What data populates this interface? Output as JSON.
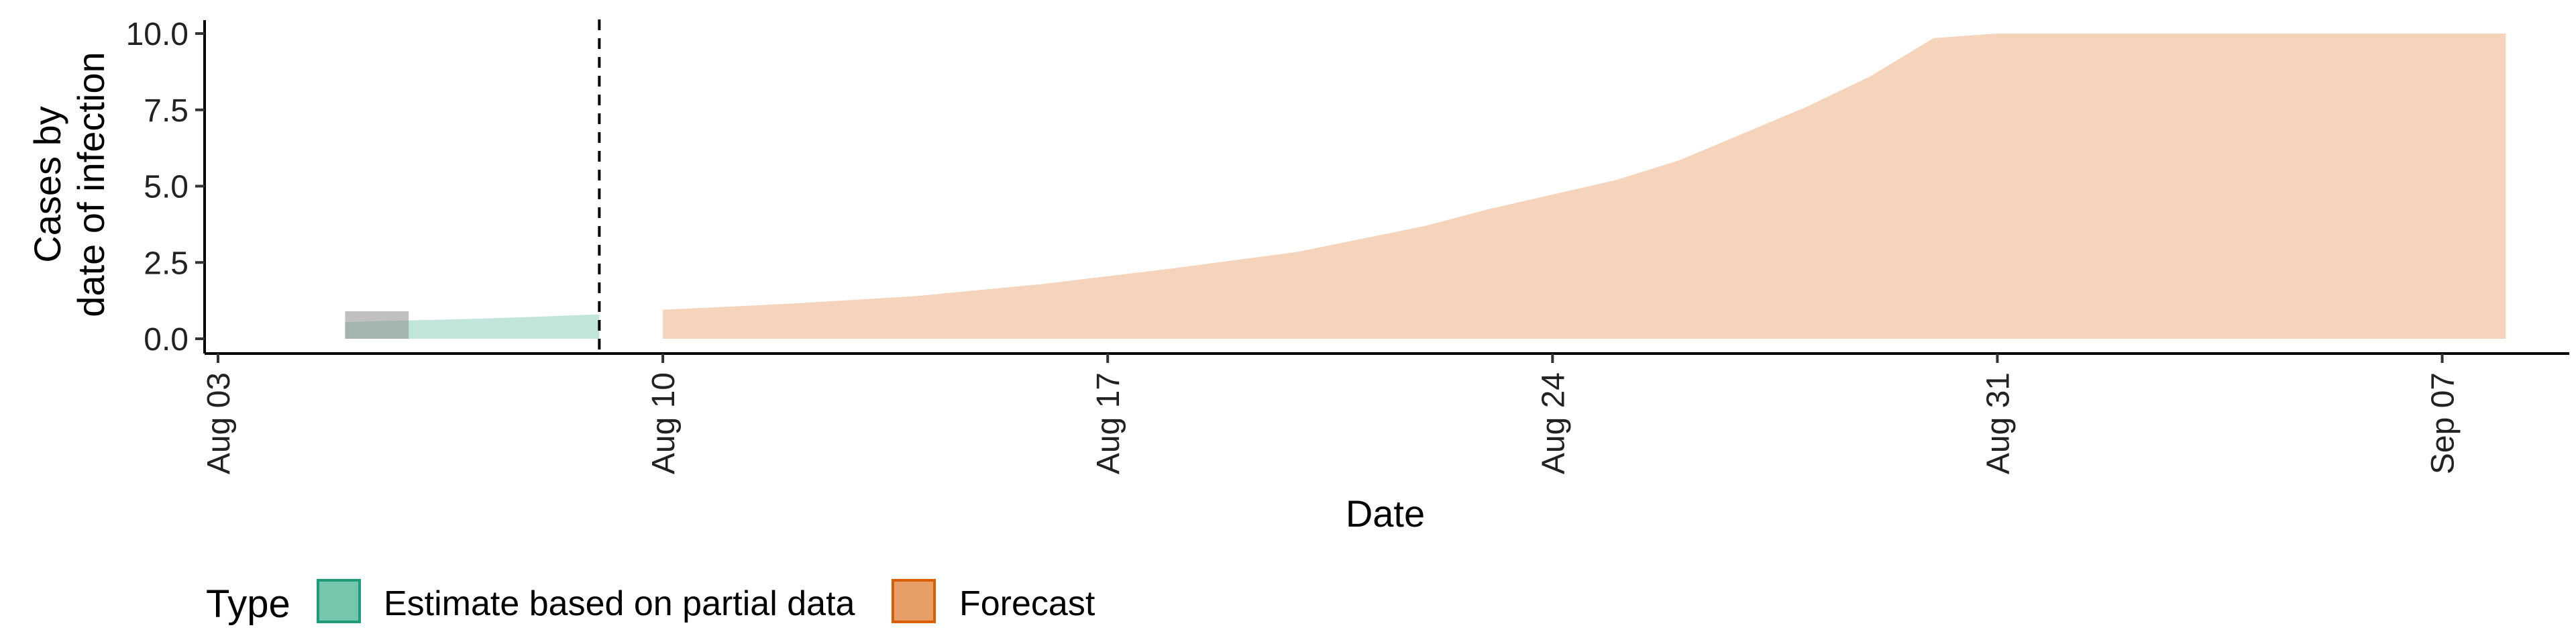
{
  "chart_data": {
    "type": "area",
    "xlabel": "Date",
    "ylabel_lines": [
      "Cases by",
      "date of infection"
    ],
    "xlim": [
      "2020-08-03",
      "2020-09-09"
    ],
    "ylim": [
      0,
      10
    ],
    "x_ticks": [
      {
        "date": "2020-08-03",
        "label": "Aug 03"
      },
      {
        "date": "2020-08-10",
        "label": "Aug 10"
      },
      {
        "date": "2020-08-17",
        "label": "Aug 17"
      },
      {
        "date": "2020-08-24",
        "label": "Aug 24"
      },
      {
        "date": "2020-08-31",
        "label": "Aug 31"
      },
      {
        "date": "2020-09-07",
        "label": "Sep 07"
      }
    ],
    "y_ticks": [
      {
        "value": 0,
        "label": "0.0"
      },
      {
        "value": 2.5,
        "label": "2.5"
      },
      {
        "value": 5,
        "label": "5.0"
      },
      {
        "value": 7.5,
        "label": "7.5"
      },
      {
        "value": 10,
        "label": "10.0"
      }
    ],
    "cutoff_date": "2020-08-09",
    "grey_band": {
      "x": [
        "2020-08-05",
        "2020-08-06"
      ],
      "y": [
        0,
        0.9
      ]
    },
    "series": [
      {
        "name": "Estimate based on partial data",
        "color": "#1b9e77",
        "lower": [
          {
            "x": "2020-08-05",
            "y": 0
          },
          {
            "x": "2020-08-09",
            "y": 0
          }
        ],
        "upper": [
          {
            "x": "2020-08-05",
            "y": 0.55
          },
          {
            "x": "2020-08-06",
            "y": 0.6
          },
          {
            "x": "2020-08-07",
            "y": 0.65
          },
          {
            "x": "2020-08-08",
            "y": 0.72
          },
          {
            "x": "2020-08-09",
            "y": 0.8
          }
        ]
      },
      {
        "name": "Forecast",
        "color": "#d95f02",
        "lower": [
          {
            "x": "2020-08-10",
            "y": 0
          },
          {
            "x": "2020-09-08",
            "y": 0
          }
        ],
        "upper": [
          {
            "x": "2020-08-10",
            "y": 0.95
          },
          {
            "x": "2020-08-12",
            "y": 1.15
          },
          {
            "x": "2020-08-14",
            "y": 1.4
          },
          {
            "x": "2020-08-16",
            "y": 1.8
          },
          {
            "x": "2020-08-18",
            "y": 2.3
          },
          {
            "x": "2020-08-20",
            "y": 2.85
          },
          {
            "x": "2020-08-22",
            "y": 3.7
          },
          {
            "x": "2020-08-23",
            "y": 4.25
          },
          {
            "x": "2020-08-25",
            "y": 5.2
          },
          {
            "x": "2020-08-26",
            "y": 5.85
          },
          {
            "x": "2020-08-28",
            "y": 7.6
          },
          {
            "x": "2020-08-29",
            "y": 8.6
          },
          {
            "x": "2020-08-30",
            "y": 9.85
          },
          {
            "x": "2020-08-31",
            "y": 10.0
          },
          {
            "x": "2020-09-08",
            "y": 10.0
          }
        ]
      }
    ],
    "legend": {
      "title": "Type",
      "position": "bottom-left",
      "items": [
        {
          "label": "Estimate based on partial data",
          "color": "#1b9e77"
        },
        {
          "label": "Forecast",
          "color": "#d95f02"
        }
      ]
    }
  }
}
